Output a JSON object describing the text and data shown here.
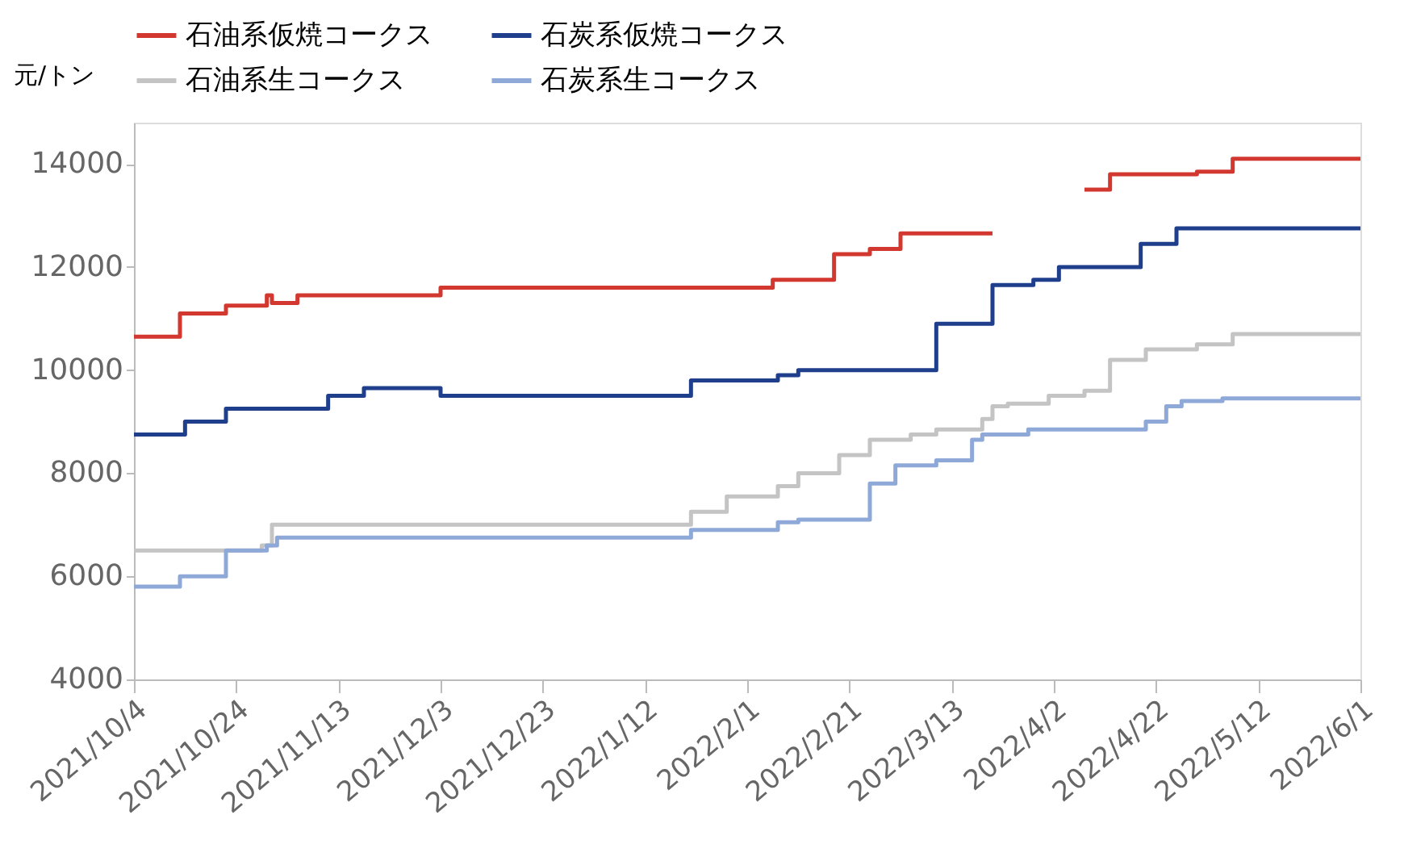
{
  "chart_data": {
    "type": "step",
    "ylabel": "元/トン",
    "ylim": [
      4000,
      14800
    ],
    "yticks": [
      4000,
      6000,
      8000,
      10000,
      12000,
      14000
    ],
    "xlim": [
      "2021-10-04",
      "2022-06-01"
    ],
    "xticks": [
      {
        "value": "2021-10-04",
        "label": "2021/10/4"
      },
      {
        "value": "2021-10-24",
        "label": "2021/10/24"
      },
      {
        "value": "2021-11-13",
        "label": "2021/11/13"
      },
      {
        "value": "2021-12-03",
        "label": "2021/12/3"
      },
      {
        "value": "2021-12-23",
        "label": "2021/12/23"
      },
      {
        "value": "2022-01-12",
        "label": "2022/1/12"
      },
      {
        "value": "2022-02-01",
        "label": "2022/2/1"
      },
      {
        "value": "2022-02-21",
        "label": "2022/2/21"
      },
      {
        "value": "2022-03-13",
        "label": "2022/3/13"
      },
      {
        "value": "2022-04-02",
        "label": "2022/4/2"
      },
      {
        "value": "2022-04-22",
        "label": "2022/4/22"
      },
      {
        "value": "2022-05-12",
        "label": "2022/5/12"
      },
      {
        "value": "2022-06-01",
        "label": "2022/6/1"
      }
    ],
    "legend": "top",
    "grid": false,
    "marker": "none",
    "line_style": "solid",
    "series": [
      {
        "name": "石油系仮焼コークス",
        "color": "#d2382f",
        "x": [
          "2021-10-04",
          "2021-10-13",
          "2021-10-22",
          "2021-10-30",
          "2021-10-31",
          "2021-11-05",
          "2021-12-03",
          "2022-02-06",
          "2022-02-18",
          "2022-02-25",
          "2022-03-03",
          "2022-03-21",
          "2022-03-22",
          "2022-04-08",
          "2022-04-13",
          "2022-04-30",
          "2022-05-07",
          "2022-06-01"
        ],
        "values": [
          10650,
          11100,
          11250,
          11450,
          11300,
          11450,
          11600,
          11750,
          12250,
          12350,
          12650,
          12650,
          null,
          13500,
          13800,
          13850,
          14100,
          14100
        ]
      },
      {
        "name": "石炭系仮焼コークス",
        "color": "#1f3e8c",
        "x": [
          "2021-10-04",
          "2021-10-14",
          "2021-10-22",
          "2021-11-11",
          "2021-11-18",
          "2021-12-03",
          "2022-01-21",
          "2022-02-07",
          "2022-02-11",
          "2022-03-10",
          "2022-03-21",
          "2022-03-29",
          "2022-04-03",
          "2022-04-19",
          "2022-04-26",
          "2022-06-01"
        ],
        "values": [
          8750,
          9000,
          9250,
          9500,
          9650,
          9500,
          9800,
          9900,
          10000,
          10900,
          11650,
          11750,
          12000,
          12450,
          12750,
          12750
        ]
      },
      {
        "name": "石油系生コークス",
        "color": "#c4c4c4",
        "x": [
          "2021-10-04",
          "2021-10-29",
          "2021-10-31",
          "2022-01-21",
          "2022-01-28",
          "2022-02-07",
          "2022-02-11",
          "2022-02-19",
          "2022-02-25",
          "2022-03-05",
          "2022-03-10",
          "2022-03-19",
          "2022-03-21",
          "2022-03-24",
          "2022-04-01",
          "2022-04-08",
          "2022-04-13",
          "2022-04-20",
          "2022-04-30",
          "2022-05-07",
          "2022-06-01"
        ],
        "values": [
          6500,
          6600,
          7000,
          7250,
          7550,
          7750,
          8000,
          8350,
          8650,
          8750,
          8850,
          9050,
          9300,
          9350,
          9500,
          9600,
          10200,
          10400,
          10500,
          10700,
          10700
        ]
      },
      {
        "name": "石炭系生コークス",
        "color": "#8ea9d8",
        "x": [
          "2021-10-04",
          "2021-10-13",
          "2021-10-22",
          "2021-10-30",
          "2021-11-01",
          "2022-01-21",
          "2022-02-07",
          "2022-02-11",
          "2022-02-25",
          "2022-03-02",
          "2022-03-10",
          "2022-03-17",
          "2022-03-19",
          "2022-03-28",
          "2022-04-20",
          "2022-04-24",
          "2022-04-27",
          "2022-05-05",
          "2022-06-01"
        ],
        "values": [
          5800,
          6000,
          6500,
          6600,
          6750,
          6900,
          7050,
          7100,
          7800,
          8150,
          8250,
          8650,
          8750,
          8850,
          9000,
          9300,
          9400,
          9450,
          9450
        ]
      }
    ]
  }
}
